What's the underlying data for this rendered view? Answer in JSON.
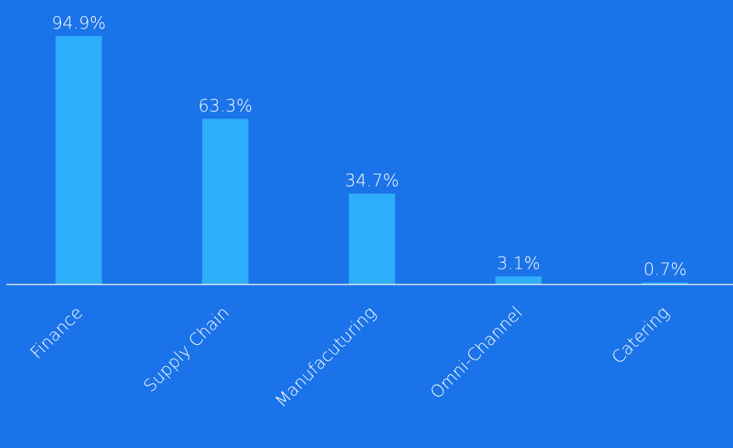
{
  "colors": {
    "background": "#1a73e8",
    "bar": "#2eaefc",
    "axis": "#dfe6f0",
    "text": "#ffffff"
  },
  "chart_data": {
    "type": "bar",
    "categories": [
      "Finance",
      "Supply Chain",
      "Manufacuturing",
      "Omni-Channel",
      "Catering"
    ],
    "values": [
      94.9,
      63.3,
      34.7,
      3.1,
      0.7
    ],
    "value_labels": [
      "94.9%",
      "63.3%",
      "34.7%",
      "3.1%",
      "0.7%"
    ],
    "ylim": [
      0,
      100
    ],
    "grid": false,
    "legend": "none",
    "tick_label_rotation": -45
  }
}
